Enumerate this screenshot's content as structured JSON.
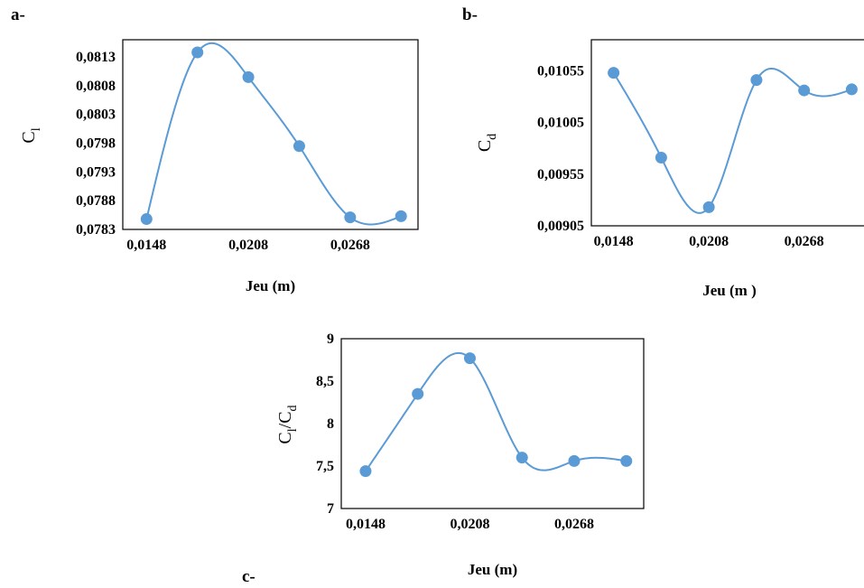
{
  "panel_labels": {
    "a": "a-",
    "b": "b-",
    "c": "c-"
  },
  "chart_data": [
    {
      "id": "a",
      "type": "line",
      "smooth": true,
      "markers": true,
      "color": "#5b9bd5",
      "xlabel": "Jeu (m)",
      "ylabel": {
        "main": "C",
        "sub": "l"
      },
      "xlim": [
        0.0134,
        0.0308
      ],
      "ylim": [
        0.0783,
        0.0816
      ],
      "xticks": [
        "0,0148",
        "0,0208",
        "0,0268"
      ],
      "xtick_values": [
        0.0148,
        0.0208,
        0.0268
      ],
      "yticks": [
        "0,0813",
        "0,0808",
        "0,0803",
        "0,0798",
        "0,0793",
        "0,0788",
        "0,0783"
      ],
      "ytick_values": [
        0.0813,
        0.0808,
        0.0803,
        0.0798,
        0.0793,
        0.0788,
        0.0783
      ],
      "x": [
        0.0148,
        0.0178,
        0.0208,
        0.0238,
        0.0268,
        0.0298
      ],
      "series": [
        {
          "values": [
            0.07848,
            0.08138,
            0.08095,
            0.07975,
            0.07851,
            0.07853
          ]
        }
      ]
    },
    {
      "id": "b",
      "type": "line",
      "smooth": true,
      "markers": true,
      "color": "#5b9bd5",
      "xlabel": "Jeu (m )",
      "ylabel": {
        "main": "C",
        "sub": "d"
      },
      "xlim": [
        0.0134,
        0.0308
      ],
      "ylim": [
        0.00905,
        0.01085
      ],
      "xticks": [
        "0,0148",
        "0,0208",
        "0,0268"
      ],
      "xtick_values": [
        0.0148,
        0.0208,
        0.0268
      ],
      "yticks": [
        "0,01055",
        "0,01005",
        "0,00955",
        "0,00905"
      ],
      "ytick_values": [
        0.01055,
        0.01005,
        0.00955,
        0.00905
      ],
      "x": [
        0.0148,
        0.0178,
        0.0208,
        0.0238,
        0.0268,
        0.0298
      ],
      "series": [
        {
          "values": [
            0.01053,
            0.00971,
            0.00923,
            0.01046,
            0.01036,
            0.01037
          ]
        }
      ]
    },
    {
      "id": "c",
      "type": "line",
      "smooth": true,
      "markers": true,
      "color": "#5b9bd5",
      "xlabel": "Jeu (m)",
      "ylabel": {
        "main": "C",
        "sub": "l",
        "mid": "/C",
        "sub2": "d"
      },
      "xlim": [
        0.0134,
        0.0308
      ],
      "ylim": [
        7,
        9
      ],
      "xticks": [
        "0,0148",
        "0,0208",
        "0,0268"
      ],
      "xtick_values": [
        0.0148,
        0.0208,
        0.0268
      ],
      "yticks": [
        "9",
        "8,5",
        "8",
        "7,5",
        "7"
      ],
      "ytick_values": [
        9,
        8.5,
        8,
        7.5,
        7
      ],
      "x": [
        0.0148,
        0.0178,
        0.0208,
        0.0238,
        0.0268,
        0.0298
      ],
      "series": [
        {
          "values": [
            7.44,
            8.35,
            8.77,
            7.6,
            7.56,
            7.56
          ]
        }
      ]
    }
  ]
}
